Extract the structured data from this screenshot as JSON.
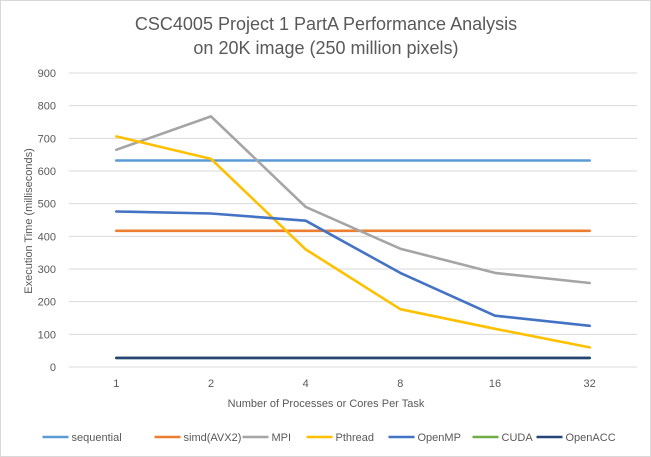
{
  "chart_data": {
    "type": "line",
    "title_lines": [
      "CSC4005 Project 1 PartA Performance Analysis",
      "on 20K image (250 million pixels)"
    ],
    "xlabel": "Number  of Processes or Cores Per Task",
    "ylabel": "Execution Time (milliseconds)",
    "categories": [
      "1",
      "2",
      "4",
      "8",
      "16",
      "32"
    ],
    "ylim": [
      0,
      900
    ],
    "y_ticks": [
      "0",
      "100",
      "200",
      "300",
      "400",
      "500",
      "600",
      "700",
      "800",
      "900"
    ],
    "grid": true,
    "legend_position": "bottom",
    "series": [
      {
        "name": "sequential",
        "color": "#5b9bd5",
        "values": [
          632,
          632,
          632,
          632,
          632,
          632
        ]
      },
      {
        "name": "simd(AVX2)",
        "color": "#ed7d31",
        "values": [
          417,
          417,
          417,
          417,
          417,
          417
        ]
      },
      {
        "name": "MPI",
        "color": "#a5a5a5",
        "values": [
          665,
          767,
          490,
          362,
          288,
          257
        ]
      },
      {
        "name": "Pthread",
        "color": "#ffc000",
        "values": [
          706,
          637,
          360,
          177,
          117,
          60
        ]
      },
      {
        "name": "OpenMP",
        "color": "#4472c4",
        "values": [
          476,
          470,
          448,
          288,
          157,
          126
        ]
      },
      {
        "name": "CUDA",
        "color": "#70ad47",
        "values": [
          28,
          28,
          28,
          28,
          28,
          28
        ]
      },
      {
        "name": "OpenACC",
        "color": "#264478",
        "values": [
          28,
          28,
          28,
          28,
          28,
          28
        ]
      }
    ]
  }
}
